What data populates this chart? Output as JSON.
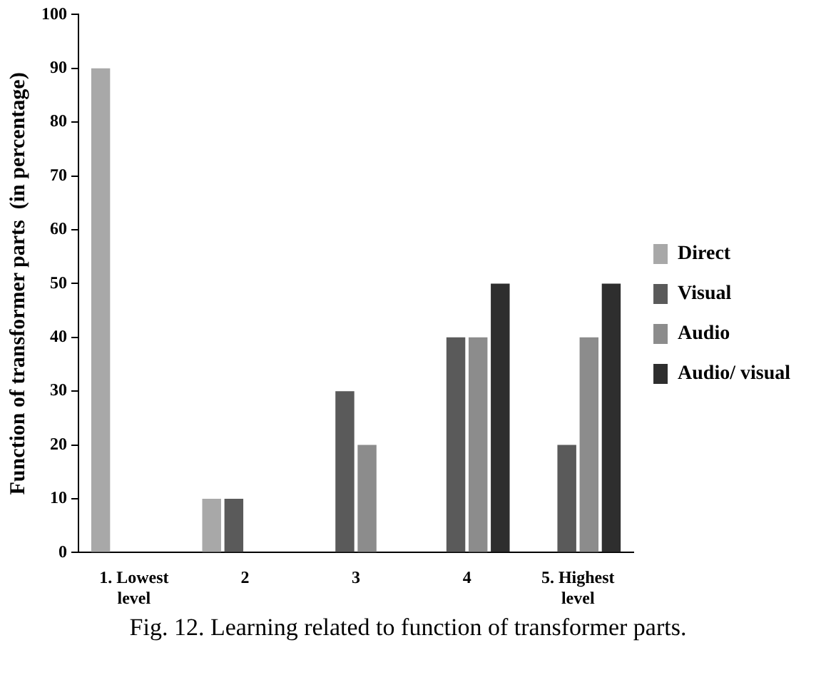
{
  "chart_data": {
    "type": "bar",
    "ylabel": "Function of transformer parts  (in percentage)",
    "categories": [
      "1. Lowest level",
      "2",
      "3",
      "4",
      "5. Highest level"
    ],
    "series": [
      {
        "name": "Direct",
        "color": "#a8a8a8",
        "values": [
          90,
          10,
          null,
          null,
          null
        ]
      },
      {
        "name": "Visual",
        "color": "#5a5a5a",
        "values": [
          null,
          10,
          30,
          40,
          20
        ]
      },
      {
        "name": "Audio",
        "color": "#8c8c8c",
        "values": [
          null,
          null,
          20,
          40,
          40
        ]
      },
      {
        "name": "Audio/ visual",
        "color": "#2e2e2e",
        "values": [
          null,
          null,
          null,
          50,
          50
        ]
      }
    ],
    "ylim": [
      0,
      100
    ],
    "yticks": [
      0,
      10,
      20,
      30,
      40,
      50,
      60,
      70,
      80,
      90,
      100
    ],
    "grid": false,
    "legend": "right",
    "annotations": [
      "Fig. 12. Learning related to function of transformer parts."
    ]
  }
}
